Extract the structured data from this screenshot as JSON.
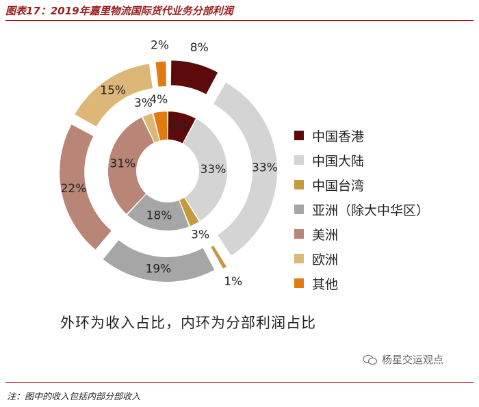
{
  "title": "图表17：2019年嘉里物流国际货代业务分部利润",
  "subtitle": "外环为收入占比，内环为分部利润占比",
  "note": "注：图中的收入包括内部分部收入",
  "watermark": "杨星交运观点",
  "chart_data": {
    "type": "pie",
    "categories": [
      "中国香港",
      "中国大陆",
      "中国台湾",
      "亚洲（除大中华区）",
      "美洲",
      "欧洲",
      "其他"
    ],
    "colors": [
      "#5c0a0a",
      "#d4d4d4",
      "#c49a3c",
      "#a6a6a6",
      "#b88577",
      "#ddb777",
      "#e27a12"
    ],
    "series": [
      {
        "name": "外环为收入占比",
        "ring": "outer",
        "values": [
          8,
          33,
          1,
          19,
          22,
          15,
          2
        ],
        "labels": [
          "8%",
          "33%",
          "1%",
          "19%",
          "22%",
          "15%",
          "2%"
        ]
      },
      {
        "name": "内环为分部利润占比",
        "ring": "inner",
        "values": [
          8,
          33,
          3,
          18,
          31,
          3,
          4
        ],
        "labels": [
          "8%",
          "33%",
          "3%",
          "18%",
          "31%",
          "3%",
          "4%"
        ]
      }
    ]
  }
}
